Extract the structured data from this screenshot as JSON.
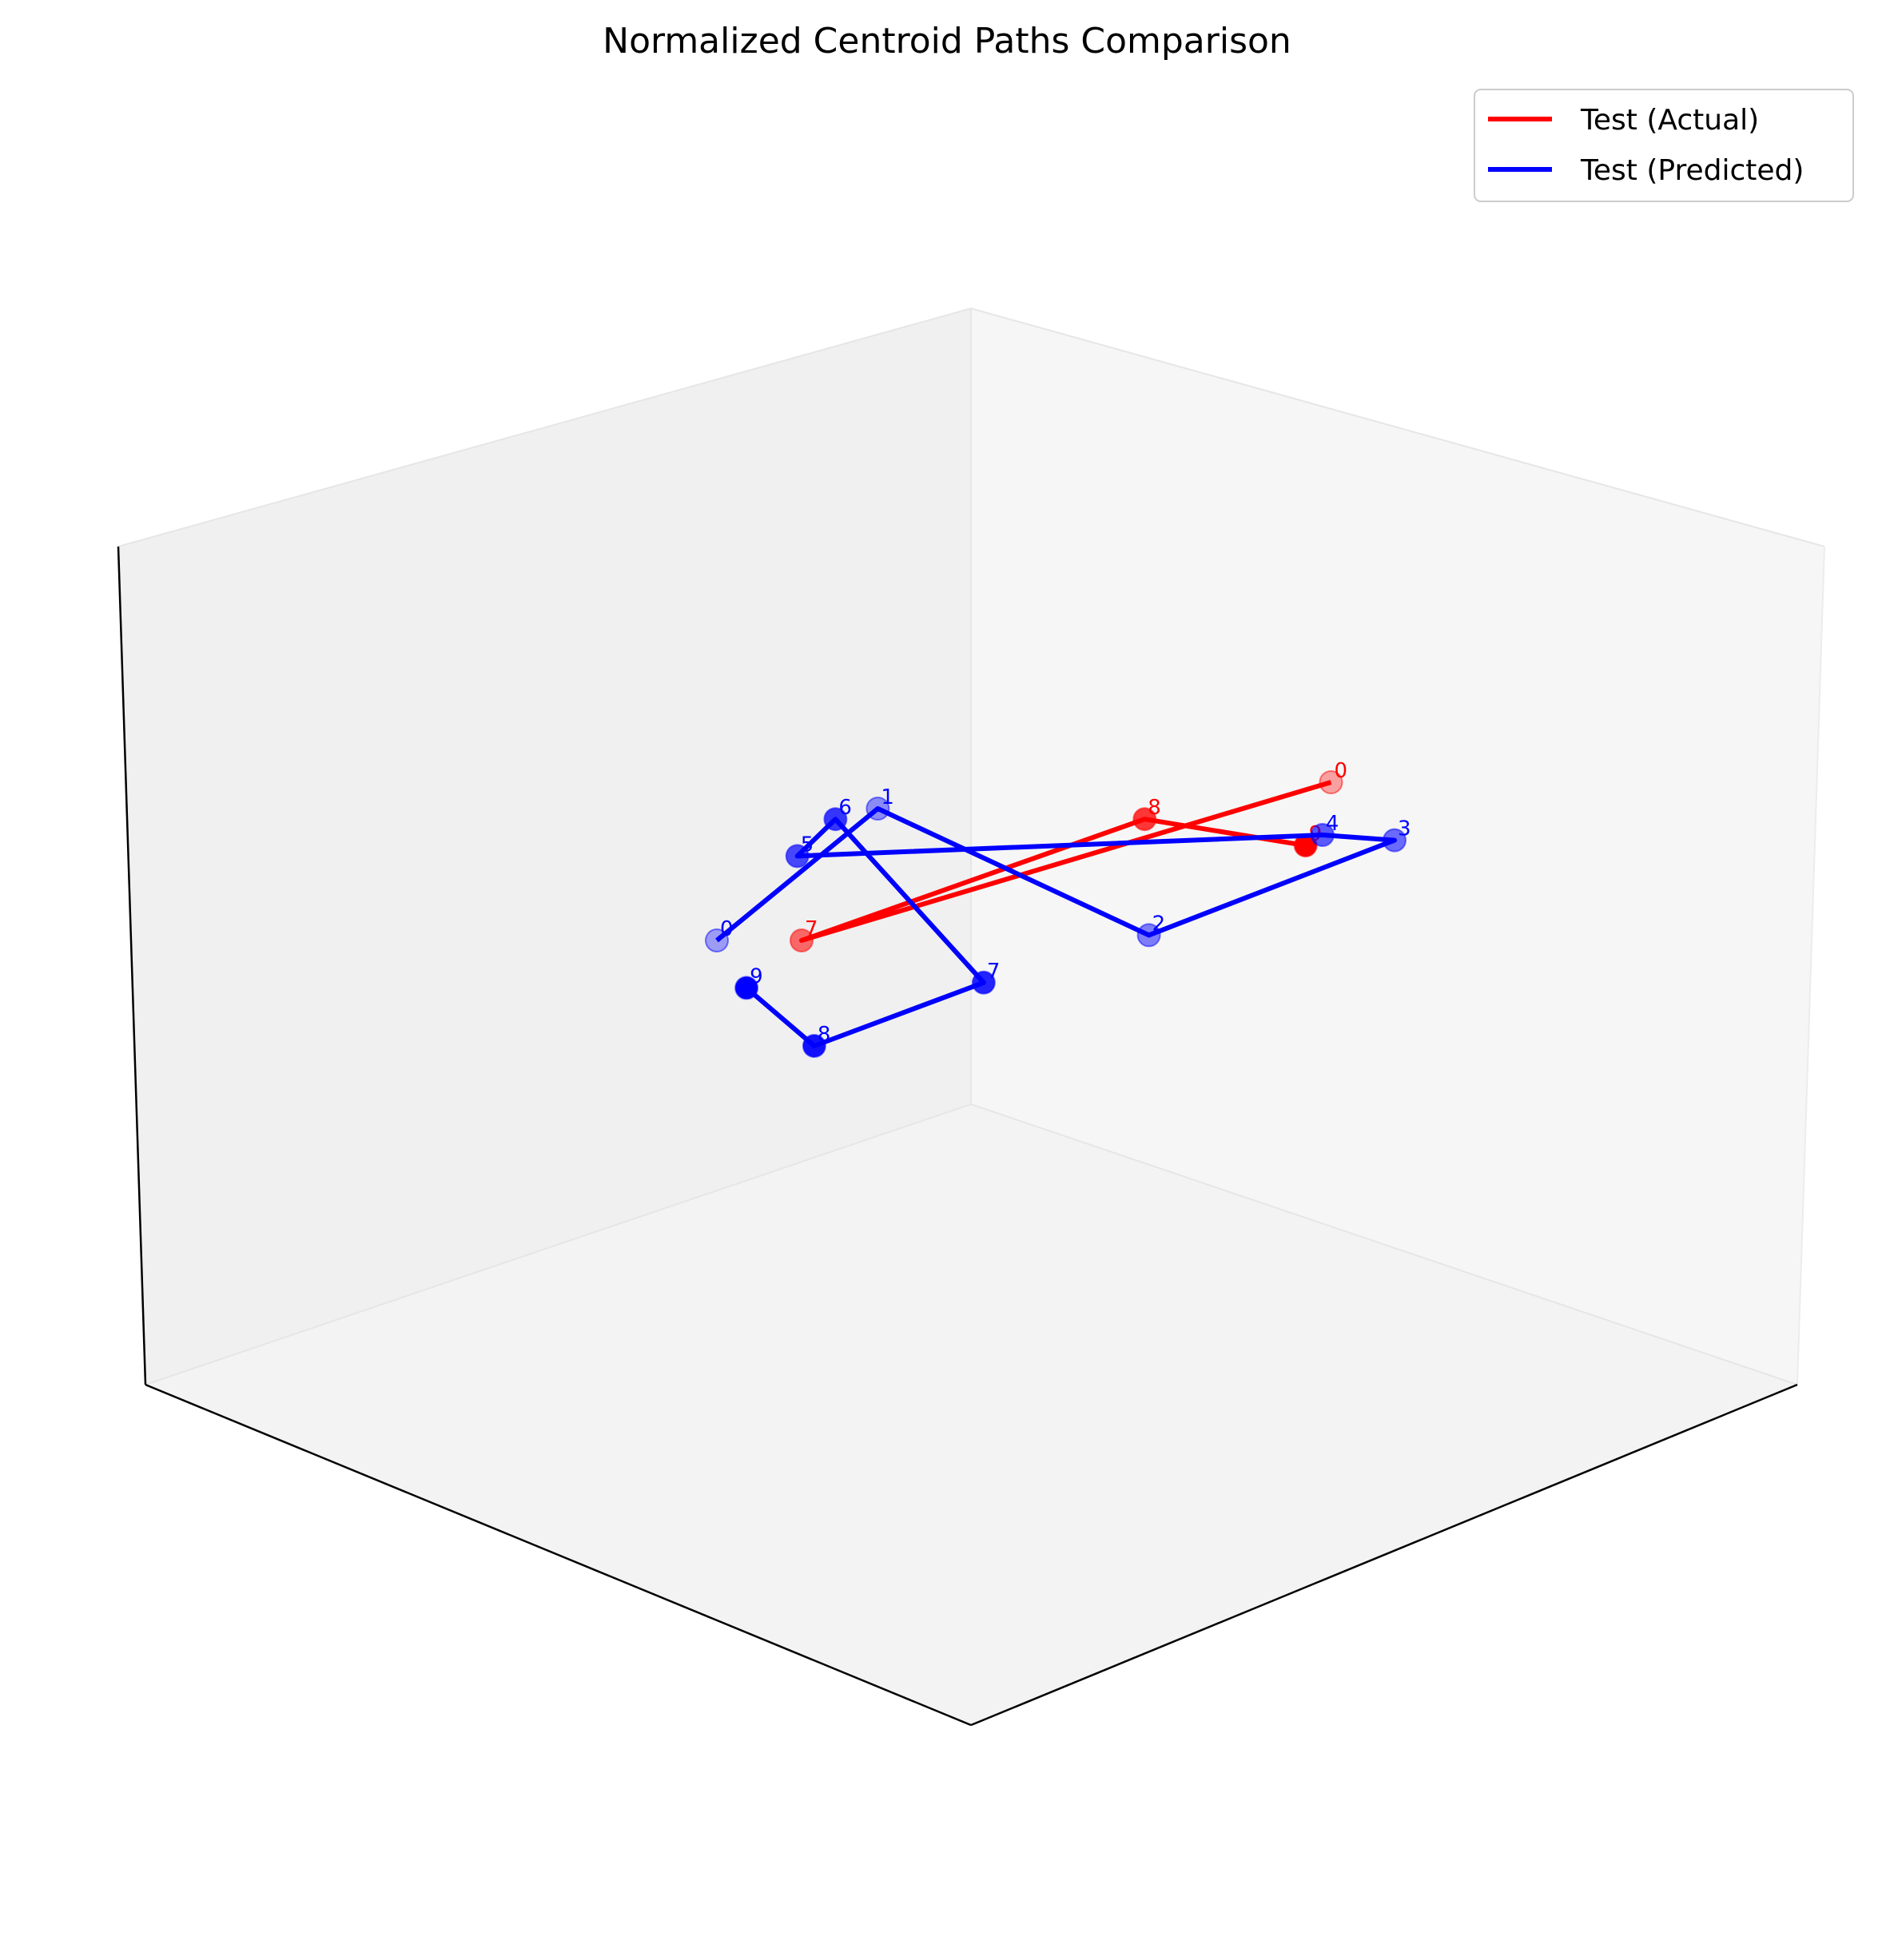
{
  "chart_data": {
    "type": "line",
    "projection": "3d",
    "title": "Normalized Centroid Paths Comparison",
    "xlabel": "",
    "ylabel": "",
    "zlabel": "",
    "grid": false,
    "axis_ticks": false,
    "legend_position": "top-right",
    "legend": [
      "Test (Actual)",
      "Test (Predicted)"
    ],
    "series": [
      {
        "name": "Test (Actual)",
        "color": "#ff0000",
        "point_labels": [
          "0",
          "7",
          "8",
          "9"
        ],
        "points": [
          {
            "label": "0",
            "screen": [
              0.85,
              0.85
            ]
          },
          {
            "label": "7",
            "screen": [
              -0.4,
              0.55
            ]
          },
          {
            "label": "8",
            "screen": [
              0.41,
              0.78
            ]
          },
          {
            "label": "9",
            "screen": [
              0.79,
              0.73
            ]
          }
        ]
      },
      {
        "name": "Test (Predicted)",
        "color": "#0000ff",
        "point_labels": [
          "0",
          "1",
          "2",
          "3",
          "4",
          "5",
          "6",
          "7",
          "8",
          "9"
        ],
        "points": [
          {
            "label": "0",
            "screen": [
              -0.6,
              0.55
            ]
          },
          {
            "label": "1",
            "screen": [
              -0.22,
              0.8
            ]
          },
          {
            "label": "2",
            "screen": [
              0.42,
              0.56
            ]
          },
          {
            "label": "3",
            "screen": [
              1.0,
              0.74
            ]
          },
          {
            "label": "4",
            "screen": [
              0.83,
              0.75
            ]
          },
          {
            "label": "5",
            "screen": [
              -0.41,
              0.71
            ]
          },
          {
            "label": "6",
            "screen": [
              -0.32,
              0.78
            ]
          },
          {
            "label": "7",
            "screen": [
              0.03,
              0.47
            ]
          },
          {
            "label": "8",
            "screen": [
              -0.37,
              0.35
            ]
          },
          {
            "label": "9",
            "screen": [
              -0.53,
              0.46
            ]
          }
        ]
      }
    ]
  }
}
